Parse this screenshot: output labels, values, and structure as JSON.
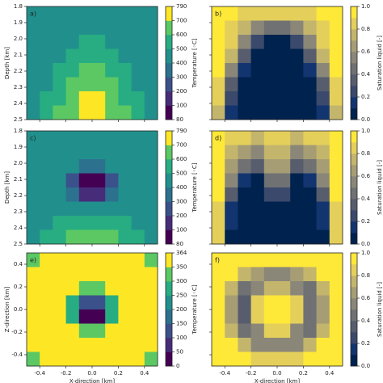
{
  "chart_data": [
    {
      "type": "contour",
      "panel_label": "a)",
      "ylabel": "Depth [km]",
      "colorbar_label": "Temperature [◦C]",
      "xlim": [
        -0.5,
        0.5
      ],
      "xticks": [
        -0.4,
        -0.2,
        {
          "value": 0,
          "label": "0.0"
        },
        0.2,
        0.4
      ],
      "show_xticklabels": false,
      "ylim": [
        2.5,
        1.8
      ],
      "yticks": [
        1.8,
        1.9,
        {
          "value": 2,
          "label": "2.0"
        },
        2.1,
        2.2,
        2.3,
        2.4,
        2.5
      ],
      "show_yticklabels": true,
      "levels": [
        80,
        100,
        200,
        300,
        400,
        500,
        600,
        700,
        790
      ],
      "colorbar_ticks": [
        80,
        100,
        200,
        300,
        400,
        500,
        600,
        700,
        790
      ],
      "colors": [
        "#440154",
        "#472c7a",
        "#3b518b",
        "#2c718e",
        "#21908d",
        "#27ad81",
        "#5cc863",
        "#fde725"
      ],
      "z": [
        [
          450,
          450,
          450,
          450,
          450,
          450,
          450,
          450,
          450,
          450
        ],
        [
          450,
          450,
          450,
          450,
          460,
          460,
          450,
          450,
          450,
          450
        ],
        [
          450,
          450,
          450,
          470,
          520,
          520,
          470,
          450,
          450,
          450
        ],
        [
          450,
          450,
          470,
          520,
          560,
          560,
          520,
          470,
          450,
          450
        ],
        [
          450,
          460,
          510,
          560,
          610,
          610,
          560,
          510,
          460,
          450
        ],
        [
          460,
          490,
          550,
          610,
          660,
          660,
          610,
          550,
          490,
          460
        ],
        [
          470,
          520,
          590,
          650,
          700,
          700,
          650,
          590,
          520,
          470
        ],
        [
          480,
          540,
          610,
          680,
          720,
          720,
          680,
          610,
          540,
          480
        ]
      ]
    },
    {
      "type": "contour",
      "panel_label": "b)",
      "colorbar_label": "Saturation liquid [-]",
      "xlim": [
        -0.5,
        0.5
      ],
      "xticks": [
        -0.4,
        -0.2,
        {
          "value": 0,
          "label": "0.0"
        },
        0.2,
        0.4
      ],
      "show_xticklabels": false,
      "ylim": [
        2.5,
        1.8
      ],
      "yticks": [
        1.8,
        1.9,
        {
          "value": 2,
          "label": "2.0"
        },
        2.1,
        2.2,
        2.3,
        2.4,
        2.5
      ],
      "show_yticklabels": false,
      "levels": [
        0,
        0.1,
        0.2,
        0.3,
        0.4,
        0.5,
        0.6,
        0.7,
        0.8,
        0.9,
        1
      ],
      "colorbar_ticks": [
        {
          "value": 0,
          "label": "0.0"
        },
        0.2,
        0.4,
        0.6,
        0.8,
        {
          "value": 1,
          "label": "1.0"
        }
      ],
      "colors": [
        "#00224e",
        "#123570",
        "#3b496c",
        "#575d6d",
        "#707173",
        "#8a8779",
        "#a69d75",
        "#c4b56c",
        "#e4cf5b",
        "#fee838"
      ],
      "z": [
        [
          0.95,
          0.9,
          0.85,
          0.8,
          0.8,
          0.8,
          0.8,
          0.85,
          0.9,
          0.95
        ],
        [
          0.95,
          0.85,
          0.7,
          0.5,
          0.4,
          0.4,
          0.5,
          0.7,
          0.85,
          0.95
        ],
        [
          0.95,
          0.8,
          0.5,
          0.2,
          0.05,
          0.05,
          0.2,
          0.5,
          0.8,
          0.95
        ],
        [
          0.95,
          0.7,
          0.3,
          0.05,
          0,
          0,
          0.05,
          0.3,
          0.7,
          0.95
        ],
        [
          0.9,
          0.5,
          0.1,
          0,
          0,
          0,
          0,
          0.1,
          0.5,
          0.9
        ],
        [
          0.85,
          0.3,
          0.05,
          0,
          0,
          0,
          0,
          0.05,
          0.3,
          0.85
        ],
        [
          0.8,
          0.2,
          0,
          0,
          0,
          0,
          0,
          0,
          0.2,
          0.8
        ],
        [
          0.75,
          0.1,
          0,
          0,
          0,
          0,
          0,
          0,
          0.1,
          0.75
        ]
      ]
    },
    {
      "type": "contour",
      "panel_label": "c)",
      "ylabel": "Depth [km]",
      "colorbar_label": "Temperature [◦C]",
      "xlim": [
        -0.5,
        0.5
      ],
      "xticks": [
        -0.4,
        -0.2,
        {
          "value": 0,
          "label": "0.0"
        },
        0.2,
        0.4
      ],
      "show_xticklabels": false,
      "ylim": [
        2.5,
        1.8
      ],
      "yticks": [
        1.8,
        1.9,
        {
          "value": 2,
          "label": "2.0"
        },
        2.1,
        2.2,
        2.3,
        2.4,
        2.5
      ],
      "show_yticklabels": true,
      "levels": [
        80,
        100,
        200,
        300,
        400,
        500,
        600,
        700,
        790
      ],
      "colorbar_ticks": [
        80,
        100,
        200,
        300,
        400,
        500,
        600,
        700,
        790
      ],
      "colors": [
        "#440154",
        "#472c7a",
        "#3b518b",
        "#2c718e",
        "#21908d",
        "#27ad81",
        "#5cc863",
        "#fde725"
      ],
      "z": [
        [
          450,
          450,
          450,
          450,
          450,
          450,
          450,
          450,
          450,
          450
        ],
        [
          450,
          450,
          450,
          450,
          440,
          440,
          450,
          450,
          450,
          450
        ],
        [
          450,
          450,
          450,
          400,
          300,
          300,
          400,
          450,
          450,
          450
        ],
        [
          450,
          450,
          420,
          250,
          90,
          90,
          250,
          420,
          450,
          450
        ],
        [
          450,
          450,
          430,
          300,
          150,
          150,
          300,
          430,
          450,
          450
        ],
        [
          450,
          460,
          480,
          480,
          420,
          420,
          480,
          480,
          460,
          450
        ],
        [
          460,
          490,
          530,
          560,
          570,
          570,
          560,
          530,
          490,
          460
        ],
        [
          470,
          510,
          560,
          600,
          620,
          620,
          600,
          560,
          510,
          470
        ]
      ]
    },
    {
      "type": "contour",
      "panel_label": "d)",
      "colorbar_label": "Saturation liquid [-]",
      "xlim": [
        -0.5,
        0.5
      ],
      "xticks": [
        -0.4,
        -0.2,
        {
          "value": 0,
          "label": "0.0"
        },
        0.2,
        0.4
      ],
      "show_xticklabels": false,
      "ylim": [
        2.5,
        1.8
      ],
      "yticks": [
        1.8,
        1.9,
        {
          "value": 2,
          "label": "2.0"
        },
        2.1,
        2.2,
        2.3,
        2.4,
        2.5
      ],
      "show_yticklabels": false,
      "levels": [
        0,
        0.1,
        0.2,
        0.3,
        0.4,
        0.5,
        0.6,
        0.7,
        0.8,
        0.9,
        1
      ],
      "colorbar_ticks": [
        {
          "value": 0,
          "label": "0.0"
        },
        0.2,
        0.4,
        0.6,
        0.8,
        {
          "value": 1,
          "label": "1.0"
        }
      ],
      "colors": [
        "#00224e",
        "#123570",
        "#3b496c",
        "#575d6d",
        "#707173",
        "#8a8779",
        "#a69d75",
        "#c4b56c",
        "#e4cf5b",
        "#fee838"
      ],
      "z": [
        [
          0.9,
          0.85,
          0.8,
          0.75,
          0.8,
          0.8,
          0.75,
          0.8,
          0.85,
          0.9
        ],
        [
          0.9,
          0.7,
          0.6,
          0.55,
          0.7,
          0.7,
          0.55,
          0.6,
          0.7,
          0.9
        ],
        [
          0.9,
          0.6,
          0.4,
          0.3,
          0.6,
          0.6,
          0.3,
          0.4,
          0.6,
          0.9
        ],
        [
          0.9,
          0.5,
          0.1,
          0.05,
          0.4,
          0.4,
          0.05,
          0.1,
          0.5,
          0.9
        ],
        [
          0.9,
          0.3,
          0,
          0,
          0.2,
          0.2,
          0,
          0,
          0.3,
          0.9
        ],
        [
          0.85,
          0.1,
          0,
          0,
          0.05,
          0.05,
          0,
          0,
          0.1,
          0.85
        ],
        [
          0.85,
          0.1,
          0,
          0,
          0,
          0,
          0,
          0,
          0.1,
          0.85
        ],
        [
          0.8,
          0.05,
          0,
          0,
          0,
          0,
          0,
          0,
          0.05,
          0.8
        ]
      ]
    },
    {
      "type": "contour",
      "panel_label": "e)",
      "xlabel": "X-direction [km]",
      "ylabel": "Z-direction [km]",
      "colorbar_label": "Temperature [◦C]",
      "xlim": [
        -0.5,
        0.5
      ],
      "xticks": [
        -0.4,
        -0.2,
        {
          "value": 0,
          "label": "0.0"
        },
        0.2,
        0.4
      ],
      "show_xticklabels": true,
      "ylim": [
        -0.5,
        0.5
      ],
      "yticks": [
        -0.4,
        -0.2,
        {
          "value": 0,
          "label": "0.0"
        },
        0.2,
        0.4
      ],
      "show_yticklabels": true,
      "levels": [
        0,
        50,
        100,
        150,
        200,
        250,
        300,
        350,
        364
      ],
      "colorbar_ticks": [
        0,
        50,
        100,
        150,
        200,
        250,
        300,
        350,
        364
      ],
      "colors": [
        "#440154",
        "#472c7a",
        "#3b518b",
        "#2c718e",
        "#21908d",
        "#27ad81",
        "#5cc863",
        "#fde725"
      ],
      "z": [
        [
          330,
          350,
          355,
          355,
          355,
          355,
          355,
          355,
          350,
          330
        ],
        [
          350,
          355,
          358,
          358,
          358,
          358,
          358,
          358,
          355,
          350
        ],
        [
          355,
          358,
          358,
          350,
          320,
          320,
          350,
          358,
          358,
          355
        ],
        [
          355,
          358,
          350,
          250,
          100,
          100,
          250,
          350,
          358,
          355
        ],
        [
          355,
          358,
          350,
          250,
          40,
          40,
          250,
          350,
          358,
          355
        ],
        [
          355,
          358,
          358,
          350,
          320,
          320,
          350,
          358,
          358,
          355
        ],
        [
          350,
          355,
          358,
          358,
          358,
          358,
          358,
          358,
          355,
          350
        ],
        [
          330,
          350,
          355,
          355,
          355,
          355,
          355,
          355,
          350,
          330
        ]
      ]
    },
    {
      "type": "contour",
      "panel_label": "f)",
      "xlabel": "X-direction [km]",
      "colorbar_label": "Saturation liquid [-]",
      "xlim": [
        -0.5,
        0.5
      ],
      "xticks": [
        -0.4,
        -0.2,
        {
          "value": 0,
          "label": "0.0"
        },
        0.2,
        0.4
      ],
      "show_xticklabels": true,
      "ylim": [
        -0.5,
        0.5
      ],
      "yticks": [
        -0.4,
        -0.2,
        {
          "value": 0,
          "label": "0.0"
        },
        0.2,
        0.4
      ],
      "show_yticklabels": false,
      "levels": [
        0,
        0.1,
        0.2,
        0.3,
        0.4,
        0.5,
        0.6,
        0.7,
        0.8,
        0.9,
        1
      ],
      "colorbar_ticks": [
        {
          "value": 0,
          "label": "0.0"
        },
        0.2,
        0.4,
        0.6,
        0.8,
        {
          "value": 1,
          "label": "1.0"
        }
      ],
      "colors": [
        "#00224e",
        "#123570",
        "#3b496c",
        "#575d6d",
        "#707173",
        "#8a8779",
        "#a69d75",
        "#c4b56c",
        "#e4cf5b",
        "#fee838"
      ],
      "z": [
        [
          1,
          1,
          1,
          0.95,
          0.9,
          0.9,
          0.95,
          1,
          1,
          1
        ],
        [
          1,
          0.9,
          0.7,
          0.6,
          0.5,
          0.5,
          0.6,
          0.7,
          0.9,
          1
        ],
        [
          1,
          0.7,
          0.4,
          0.5,
          0.7,
          0.7,
          0.5,
          0.4,
          0.7,
          1
        ],
        [
          0.95,
          0.6,
          0.3,
          0.8,
          1,
          1,
          0.8,
          0.4,
          0.6,
          0.95
        ],
        [
          0.95,
          0.6,
          0.3,
          0.8,
          1,
          1,
          0.8,
          0.4,
          0.6,
          0.95
        ],
        [
          1,
          0.7,
          0.4,
          0.5,
          0.8,
          0.8,
          0.5,
          0.4,
          0.7,
          1
        ],
        [
          1,
          0.9,
          0.7,
          0.5,
          0.5,
          0.5,
          0.5,
          0.7,
          0.9,
          1
        ],
        [
          1,
          1,
          0.9,
          0.8,
          0.8,
          0.8,
          0.8,
          0.9,
          1,
          1
        ]
      ]
    }
  ]
}
